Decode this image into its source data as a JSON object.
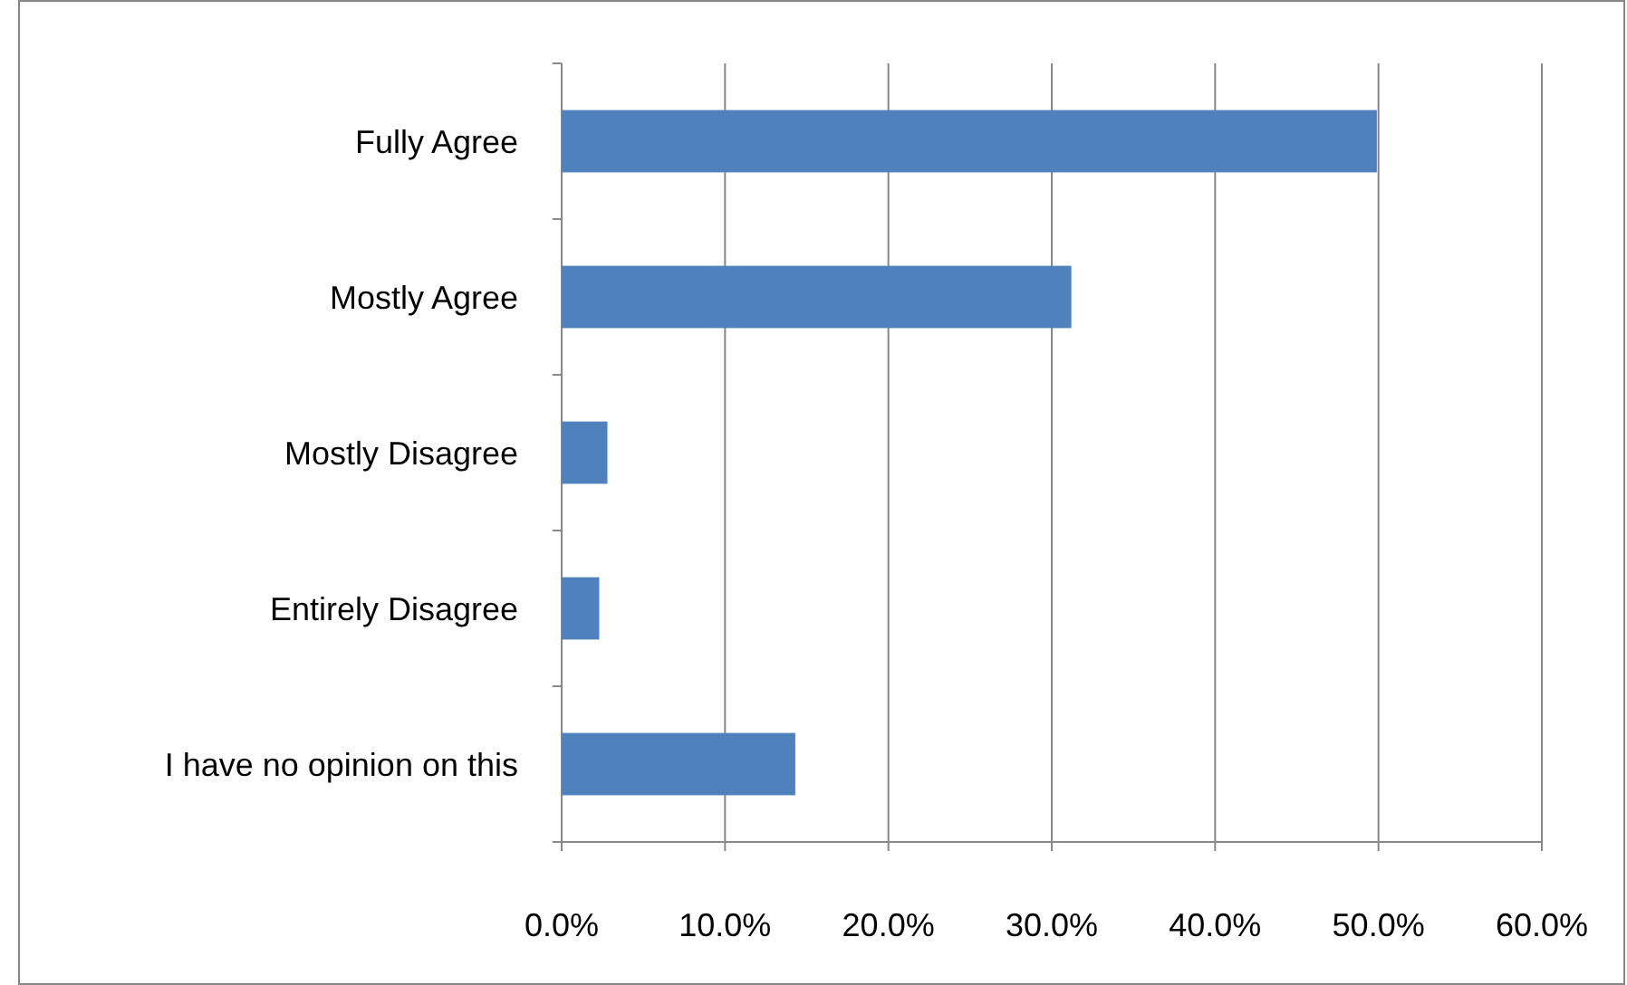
{
  "chart_data": {
    "type": "bar",
    "orientation": "horizontal",
    "categories": [
      "Fully Agree",
      "Mostly Agree",
      "Mostly Disagree",
      "Entirely Disagree",
      "I have no opinion on this"
    ],
    "values": [
      49.9,
      31.2,
      2.8,
      2.3,
      14.3
    ],
    "color": "#4f81bd",
    "xlim": [
      0,
      60
    ],
    "xticks": [
      {
        "value": 0,
        "label": "0.0%"
      },
      {
        "value": 10,
        "label": "10.0%"
      },
      {
        "value": 20,
        "label": "20.0%"
      },
      {
        "value": 30,
        "label": "30.0%"
      },
      {
        "value": 40,
        "label": "40.0%"
      },
      {
        "value": 50,
        "label": "50.0%"
      },
      {
        "value": 60,
        "label": "60.0%"
      }
    ],
    "grid": "x"
  }
}
